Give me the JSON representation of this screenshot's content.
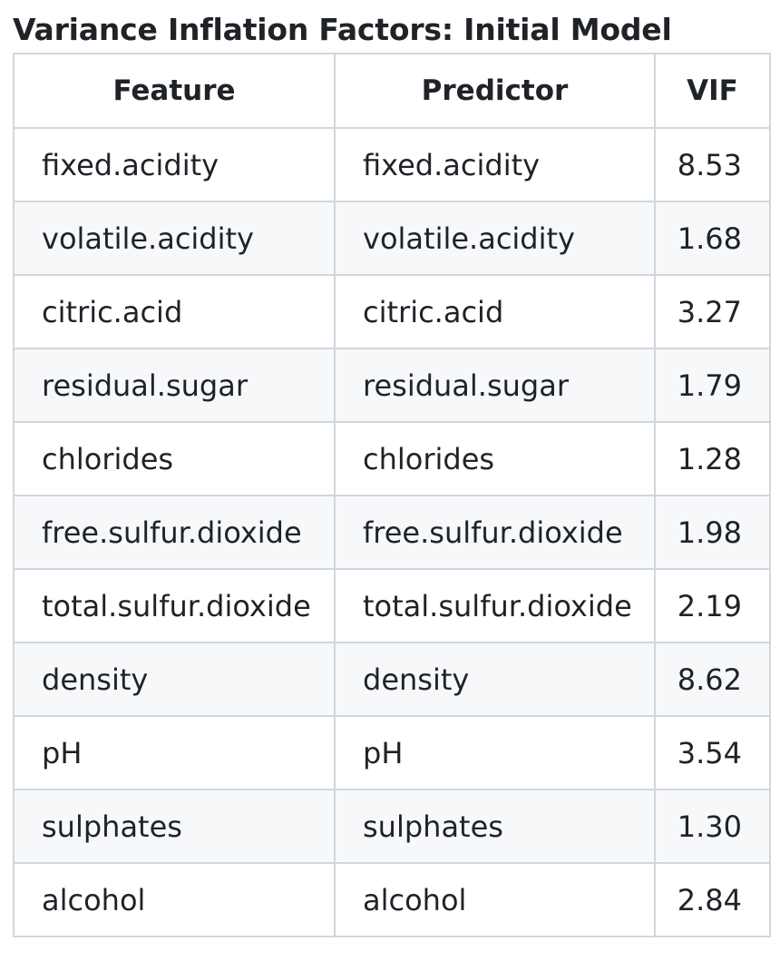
{
  "title": "Variance Inflation Factors: Initial Model",
  "table": {
    "headers": [
      "Feature",
      "Predictor",
      "VIF"
    ],
    "rows": [
      {
        "feature": "fixed.acidity",
        "predictor": "fixed.acidity",
        "vif": "8.53"
      },
      {
        "feature": "volatile.acidity",
        "predictor": "volatile.acidity",
        "vif": "1.68"
      },
      {
        "feature": "citric.acid",
        "predictor": "citric.acid",
        "vif": "3.27"
      },
      {
        "feature": "residual.sugar",
        "predictor": "residual.sugar",
        "vif": "1.79"
      },
      {
        "feature": "chlorides",
        "predictor": "chlorides",
        "vif": "1.28"
      },
      {
        "feature": "free.sulfur.dioxide",
        "predictor": "free.sulfur.dioxide",
        "vif": "1.98"
      },
      {
        "feature": "total.sulfur.dioxide",
        "predictor": "total.sulfur.dioxide",
        "vif": "2.19"
      },
      {
        "feature": "density",
        "predictor": "density",
        "vif": "8.62"
      },
      {
        "feature": "pH",
        "predictor": "pH",
        "vif": "3.54"
      },
      {
        "feature": "sulphates",
        "predictor": "sulphates",
        "vif": "1.30"
      },
      {
        "feature": "alcohol",
        "predictor": "alcohol",
        "vif": "2.84"
      }
    ]
  },
  "colors": {
    "border": "#d0d7de",
    "stripe": "#f6f8fa",
    "text": "#1f2328"
  }
}
